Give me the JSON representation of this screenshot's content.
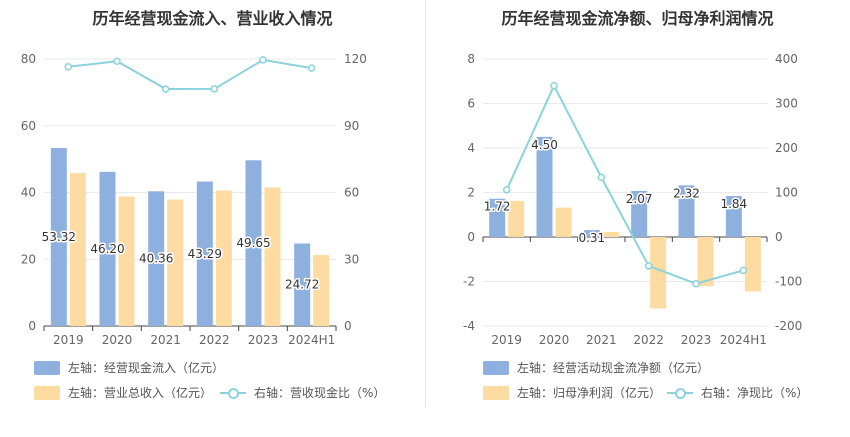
{
  "chart_data": [
    {
      "type": "bar",
      "title": "历年经营现金流入、营业收入情况",
      "categories": [
        "2019",
        "2020",
        "2021",
        "2022",
        "2023",
        "2024H1"
      ],
      "ylim": [
        0,
        80
      ],
      "yticks": [
        0,
        20,
        40,
        60,
        80
      ],
      "y2lim": [
        0,
        120
      ],
      "y2ticks": [
        0,
        30,
        60,
        90,
        120
      ],
      "series": [
        {
          "name": "左轴：经营现金流入（亿元）",
          "axis": "left",
          "kind": "bar",
          "color": "#8eb0de",
          "values": [
            53.32,
            46.2,
            40.36,
            43.29,
            49.65,
            24.72
          ],
          "labels": [
            "53.32",
            "46.20",
            "40.36",
            "43.29",
            "49.65",
            "24.72"
          ]
        },
        {
          "name": "左轴：营业总收入（亿元）",
          "axis": "left",
          "kind": "bar",
          "color": "#fedba0",
          "values": [
            45.8,
            38.8,
            37.9,
            40.6,
            41.5,
            21.3
          ]
        },
        {
          "name": "右轴：营收现金比（%）",
          "axis": "right",
          "kind": "line",
          "color": "#8ad3dd",
          "values": [
            116.5,
            119.0,
            106.5,
            106.6,
            119.6,
            115.9
          ]
        }
      ],
      "legend": "bottom",
      "grid": true
    },
    {
      "type": "bar",
      "title": "历年经营现金流净额、归母净利润情况",
      "categories": [
        "2019",
        "2020",
        "2021",
        "2022",
        "2023",
        "2024H1"
      ],
      "ylim": [
        -4,
        8
      ],
      "yticks": [
        -4,
        -2,
        0,
        2,
        4,
        6,
        8
      ],
      "y2lim": [
        -200,
        400
      ],
      "y2ticks": [
        -200,
        -100,
        0,
        100,
        200,
        300,
        400
      ],
      "series": [
        {
          "name": "左轴：经营活动现金流净额（亿元）",
          "axis": "left",
          "kind": "bar",
          "color": "#8eb0de",
          "values": [
            1.72,
            4.5,
            0.31,
            2.07,
            2.32,
            1.84
          ],
          "labels": [
            "1.72",
            "4.50",
            "0.31",
            "2.07",
            "2.32",
            "1.84"
          ]
        },
        {
          "name": "左轴：归母净利润（亿元）",
          "axis": "left",
          "kind": "bar",
          "color": "#fedba0",
          "values": [
            1.62,
            1.32,
            0.23,
            -3.21,
            -2.21,
            -2.45
          ]
        },
        {
          "name": "右轴：净现比（%）",
          "axis": "right",
          "kind": "line",
          "color": "#8ad3dd",
          "values": [
            106,
            340,
            134,
            -65,
            -105,
            -75
          ]
        }
      ],
      "legend": "bottom",
      "grid": true
    }
  ]
}
